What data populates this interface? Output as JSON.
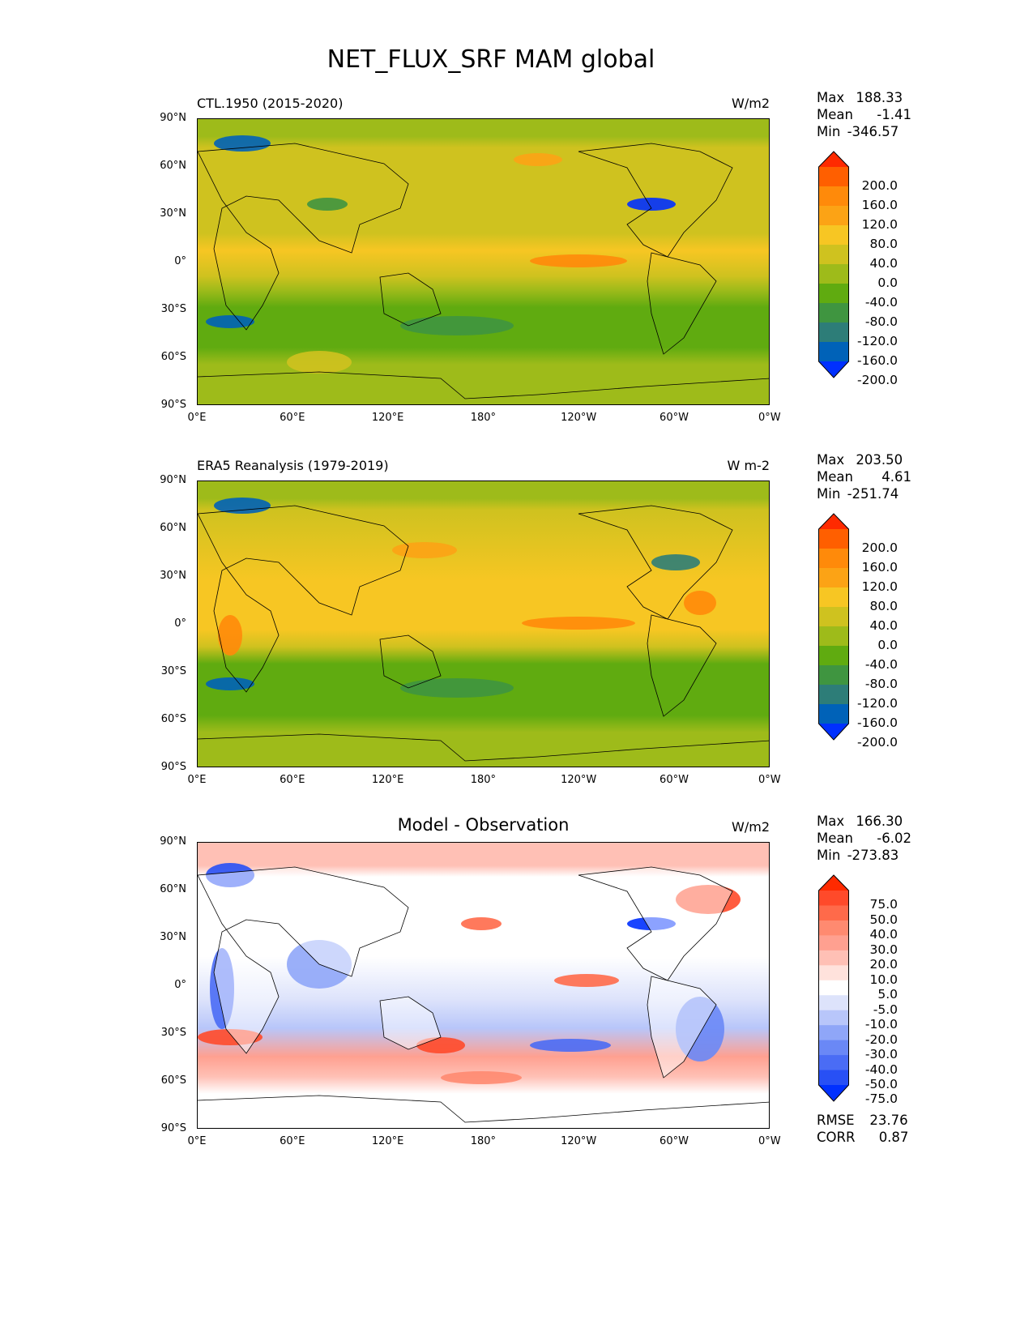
{
  "title": "NET_FLUX_SRF MAM global",
  "axes": {
    "lat_ticks": [
      "90°N",
      "60°N",
      "30°N",
      "0°",
      "30°S",
      "60°S",
      "90°S"
    ],
    "lon_ticks": [
      "0°E",
      "60°E",
      "120°E",
      "180°",
      "120°W",
      "60°W",
      "0°W"
    ]
  },
  "panels": [
    {
      "left_title": "CTL.1950 (2015-2020)",
      "center_title": "",
      "units": "W/m2",
      "stats": {
        "max_label": "Max",
        "max": "188.33",
        "mean_label": "Mean",
        "mean": "-1.41",
        "min_label": "Min",
        "min": "-346.57"
      },
      "colorbar": {
        "levels": [
          "200.0",
          "160.0",
          "120.0",
          "80.0",
          "40.0",
          "0.0",
          "-40.0",
          "-80.0",
          "-120.0",
          "-160.0",
          "-200.0"
        ],
        "colors": [
          "#ff2a00",
          "#ff5f00",
          "#ff8a0a",
          "#fca315",
          "#f7c623",
          "#cfc21f",
          "#9ebb1a",
          "#60ab10",
          "#3f9540",
          "#2d7d78",
          "#0062b8",
          "#0030ff"
        ]
      }
    },
    {
      "left_title": "ERA5 Reanalysis (1979-2019)",
      "center_title": "",
      "units": "W m-2",
      "stats": {
        "max_label": "Max",
        "max": "203.50",
        "mean_label": "Mean",
        "mean": "4.61",
        "min_label": "Min",
        "min": "-251.74"
      },
      "colorbar": {
        "levels": [
          "200.0",
          "160.0",
          "120.0",
          "80.0",
          "40.0",
          "0.0",
          "-40.0",
          "-80.0",
          "-120.0",
          "-160.0",
          "-200.0"
        ],
        "colors": [
          "#ff2a00",
          "#ff5f00",
          "#ff8a0a",
          "#fca315",
          "#f7c623",
          "#cfc21f",
          "#9ebb1a",
          "#60ab10",
          "#3f9540",
          "#2d7d78",
          "#0062b8",
          "#0030ff"
        ]
      }
    },
    {
      "left_title": "",
      "center_title": "Model - Observation",
      "units": "W/m2",
      "stats": {
        "max_label": "Max",
        "max": "166.30",
        "mean_label": "Mean",
        "mean": "-6.02",
        "min_label": "Min",
        "min": "-273.83"
      },
      "colorbar": {
        "levels": [
          "75.0",
          "50.0",
          "40.0",
          "30.0",
          "20.0",
          "10.0",
          "5.0",
          "-5.0",
          "-10.0",
          "-20.0",
          "-30.0",
          "-40.0",
          "-50.0",
          "-75.0"
        ],
        "colors": [
          "#ff2a00",
          "#ff4a2a",
          "#ff6a4a",
          "#ff8a70",
          "#ffa090",
          "#ffc0b5",
          "#ffe2dc",
          "#ffffff",
          "#dde3fb",
          "#b8c6fa",
          "#8fa6f8",
          "#6a88f6",
          "#4a6cf5",
          "#2850f5",
          "#0030ff"
        ]
      },
      "metrics": {
        "rmse_label": "RMSE",
        "rmse": "23.76",
        "corr_label": "CORR",
        "corr": "0.87"
      }
    }
  ]
}
